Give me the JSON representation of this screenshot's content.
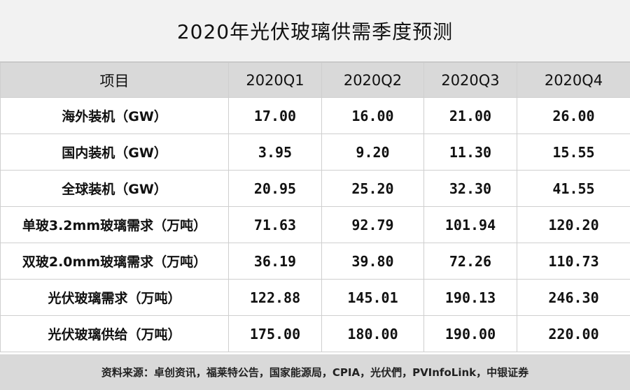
{
  "title": "2020年光伏玻璃供需季度预测",
  "table": {
    "headers": [
      "项目",
      "2020Q1",
      "2020Q2",
      "2020Q3",
      "2020Q4"
    ],
    "rows": [
      {
        "label": "海外装机（GW）",
        "values": [
          "17.00",
          "16.00",
          "21.00",
          "26.00"
        ]
      },
      {
        "label": "国内装机（GW）",
        "values": [
          "3.95",
          "9.20",
          "11.30",
          "15.55"
        ]
      },
      {
        "label": "全球装机（GW）",
        "values": [
          "20.95",
          "25.20",
          "32.30",
          "41.55"
        ]
      },
      {
        "label": "单玻3.2mm玻璃需求（万吨）",
        "values": [
          "71.63",
          "92.79",
          "101.94",
          "120.20"
        ]
      },
      {
        "label": "双玻2.0mm玻璃需求（万吨）",
        "values": [
          "36.19",
          "39.80",
          "72.26",
          "110.73"
        ]
      },
      {
        "label": "光伏玻璃需求（万吨）",
        "values": [
          "122.88",
          "145.01",
          "190.13",
          "246.30"
        ]
      },
      {
        "label": "光伏玻璃供给（万吨）",
        "values": [
          "175.00",
          "180.00",
          "190.00",
          "220.00"
        ]
      }
    ]
  },
  "source": "资料来源：卓创资讯，福莱特公告，国家能源局，CPIA，光伏們，PVInfoLink，中银证券"
}
